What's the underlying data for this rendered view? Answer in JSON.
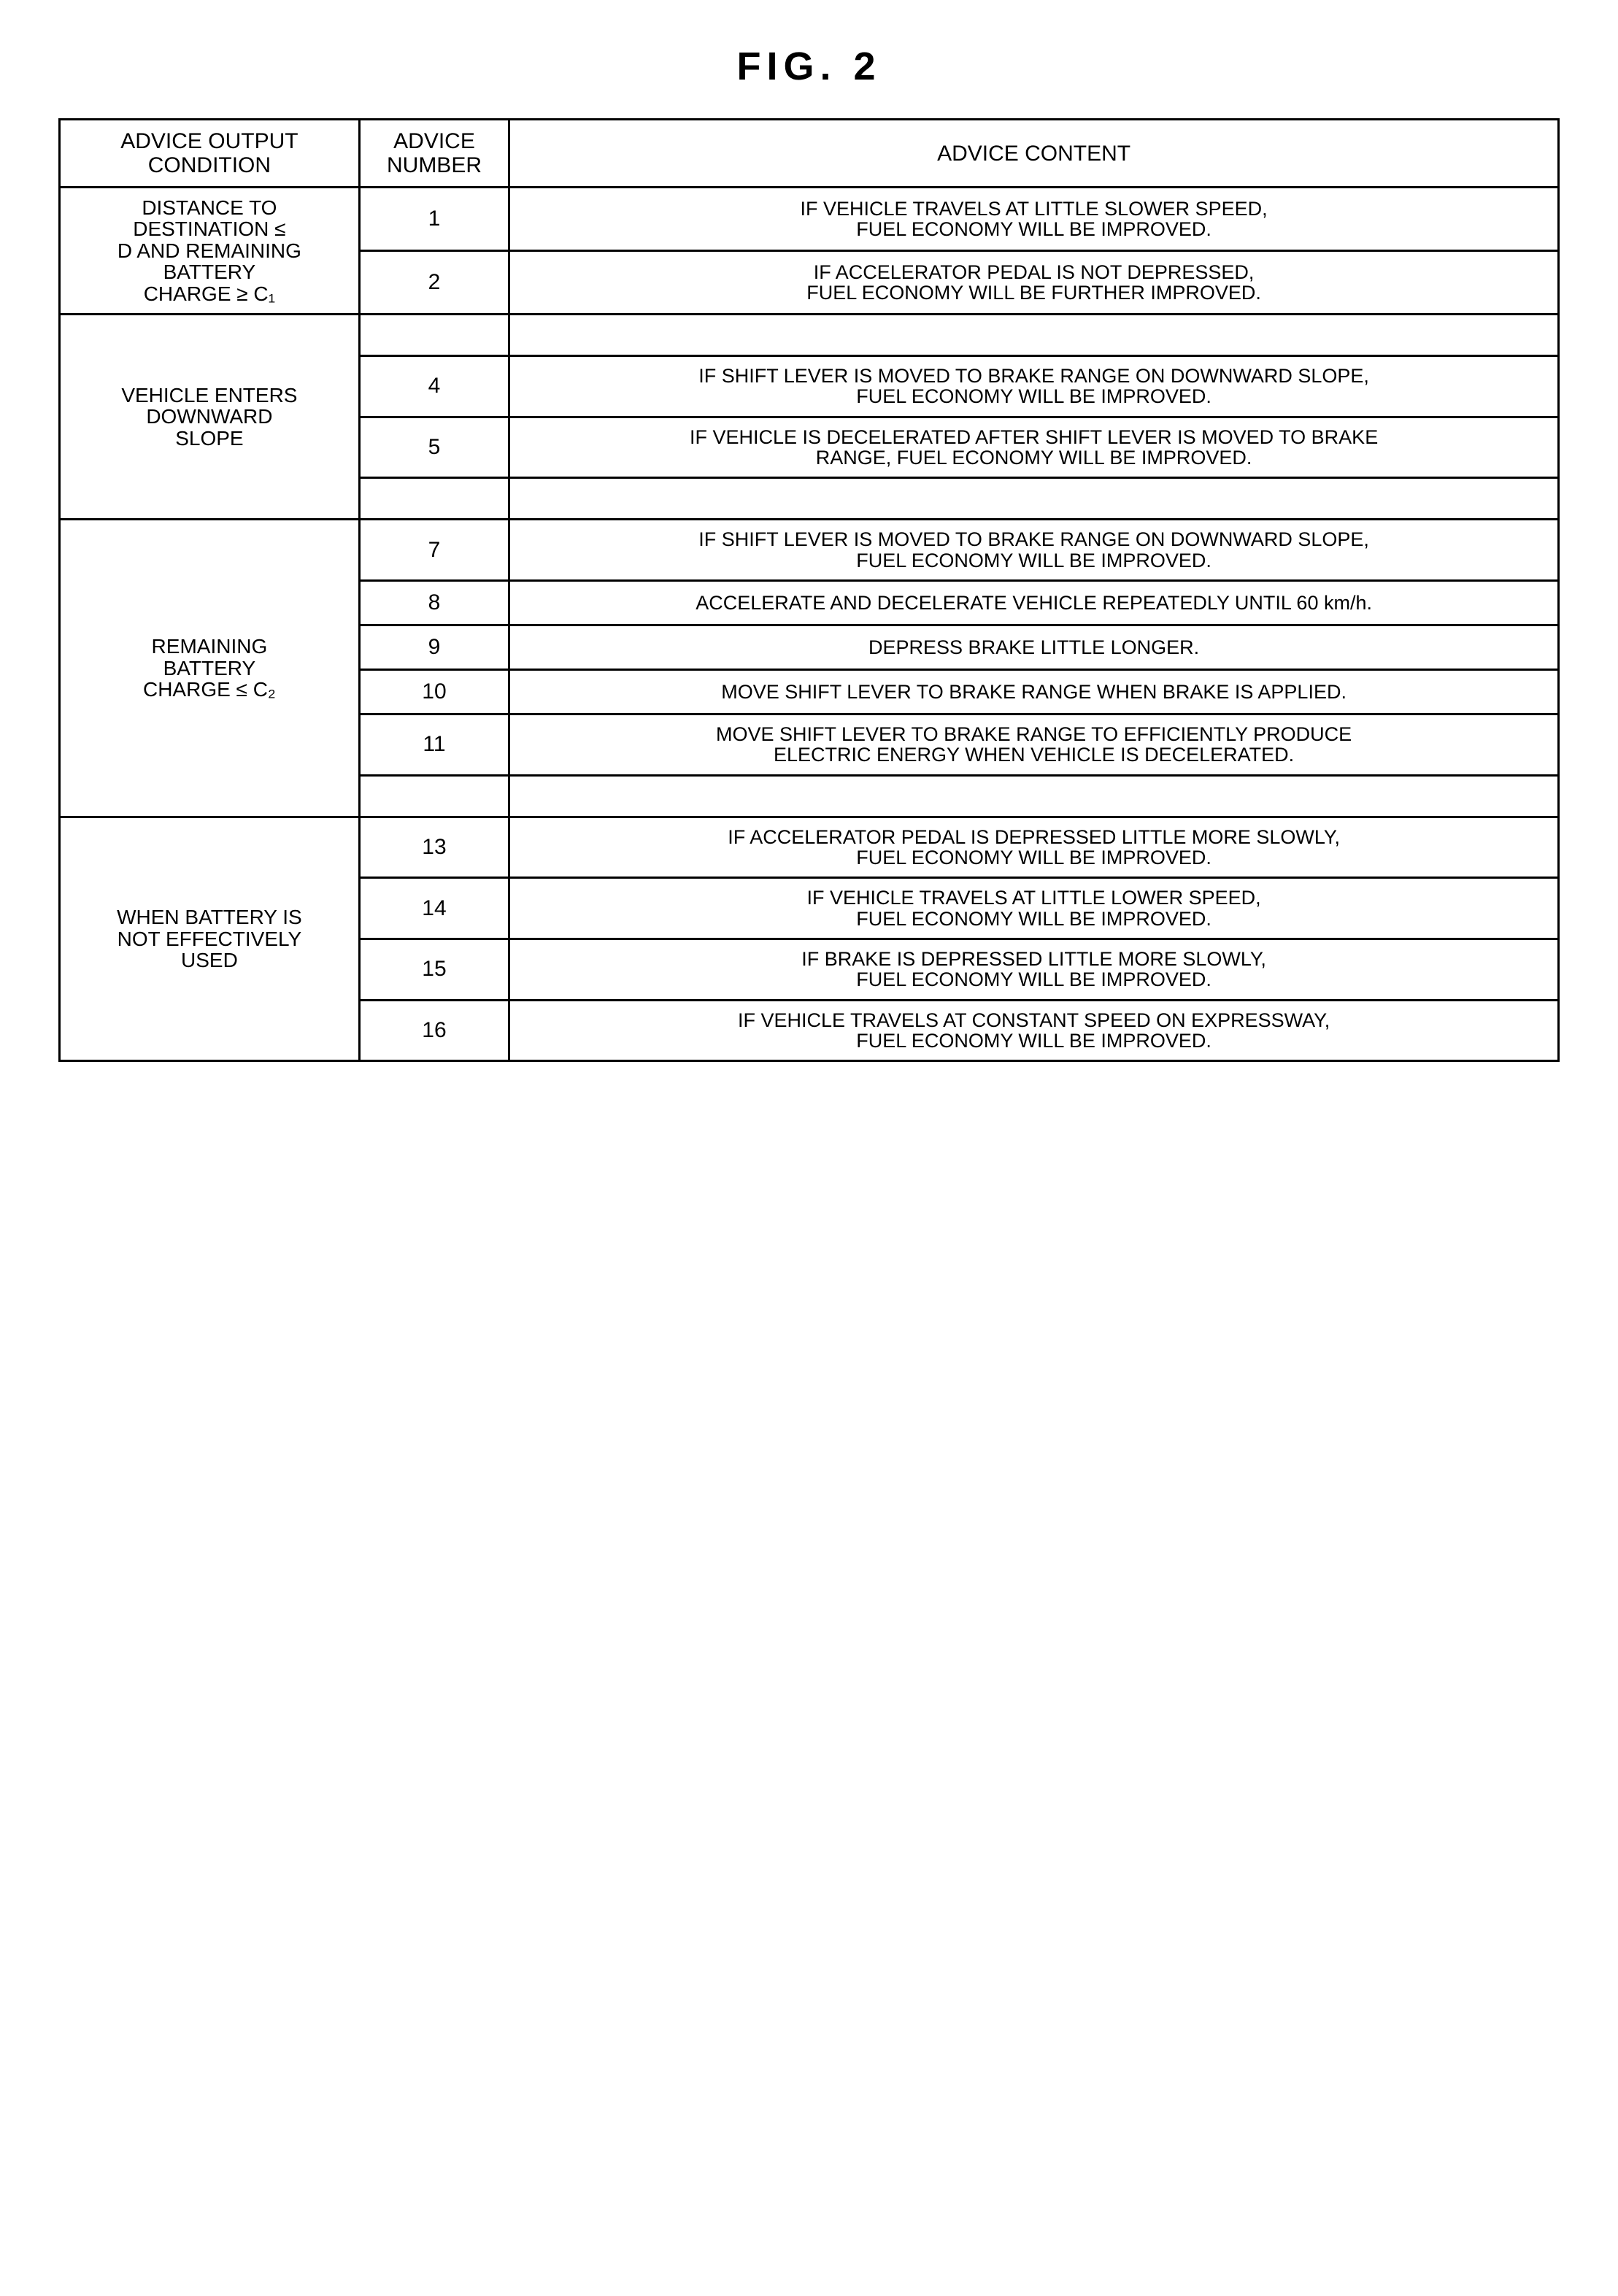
{
  "figure_title": "FIG. 2",
  "headers": {
    "condition": "ADVICE OUTPUT\nCONDITION",
    "number": "ADVICE\nNUMBER",
    "content": "ADVICE CONTENT"
  },
  "groups": [
    {
      "condition": "DISTANCE TO\nDESTINATION ≤\nD AND REMAINING\nBATTERY\nCHARGE ≥ C₁",
      "rows": [
        {
          "number": "1",
          "content": "IF VEHICLE TRAVELS AT LITTLE SLOWER SPEED,\nFUEL ECONOMY WILL BE IMPROVED."
        },
        {
          "number": "2",
          "content": "IF ACCELERATOR PEDAL IS NOT DEPRESSED,\nFUEL ECONOMY WILL BE FURTHER IMPROVED."
        }
      ],
      "trailing_blank": false
    },
    {
      "condition": "VEHICLE ENTERS\nDOWNWARD\nSLOPE",
      "rows": [
        {
          "number": "",
          "content": ""
        },
        {
          "number": "4",
          "content": "IF SHIFT LEVER IS MOVED TO BRAKE RANGE ON DOWNWARD SLOPE,\nFUEL ECONOMY WILL BE IMPROVED."
        },
        {
          "number": "5",
          "content": "IF VEHICLE IS DECELERATED AFTER SHIFT LEVER IS MOVED TO BRAKE\nRANGE, FUEL ECONOMY WILL BE IMPROVED."
        },
        {
          "number": "",
          "content": ""
        }
      ],
      "trailing_blank": false
    },
    {
      "condition": "REMAINING\nBATTERY\nCHARGE ≤ C₂",
      "rows": [
        {
          "number": "7",
          "content": "IF SHIFT LEVER IS MOVED TO BRAKE RANGE ON DOWNWARD SLOPE,\nFUEL ECONOMY WILL BE IMPROVED."
        },
        {
          "number": "8",
          "content": "ACCELERATE AND DECELERATE VEHICLE REPEATEDLY UNTIL 60 km/h."
        },
        {
          "number": "9",
          "content": "DEPRESS BRAKE LITTLE LONGER."
        },
        {
          "number": "10",
          "content": "MOVE SHIFT LEVER TO BRAKE RANGE WHEN BRAKE IS APPLIED."
        },
        {
          "number": "11",
          "content": "MOVE SHIFT LEVER TO BRAKE RANGE TO EFFICIENTLY PRODUCE\nELECTRIC ENERGY WHEN VEHICLE IS DECELERATED."
        },
        {
          "number": "",
          "content": ""
        }
      ],
      "trailing_blank": false
    },
    {
      "condition": "WHEN BATTERY IS\nNOT EFFECTIVELY\nUSED",
      "rows": [
        {
          "number": "13",
          "content": "IF ACCELERATOR PEDAL IS DEPRESSED LITTLE MORE SLOWLY,\nFUEL ECONOMY WILL BE IMPROVED."
        },
        {
          "number": "14",
          "content": "IF VEHICLE TRAVELS AT LITTLE LOWER SPEED,\nFUEL ECONOMY WILL BE IMPROVED."
        },
        {
          "number": "15",
          "content": "IF BRAKE IS DEPRESSED LITTLE MORE SLOWLY,\nFUEL ECONOMY WILL BE IMPROVED."
        },
        {
          "number": "16",
          "content": "IF VEHICLE TRAVELS AT CONSTANT SPEED ON EXPRESSWAY,\nFUEL ECONOMY WILL BE IMPROVED."
        }
      ],
      "trailing_blank": false
    }
  ]
}
